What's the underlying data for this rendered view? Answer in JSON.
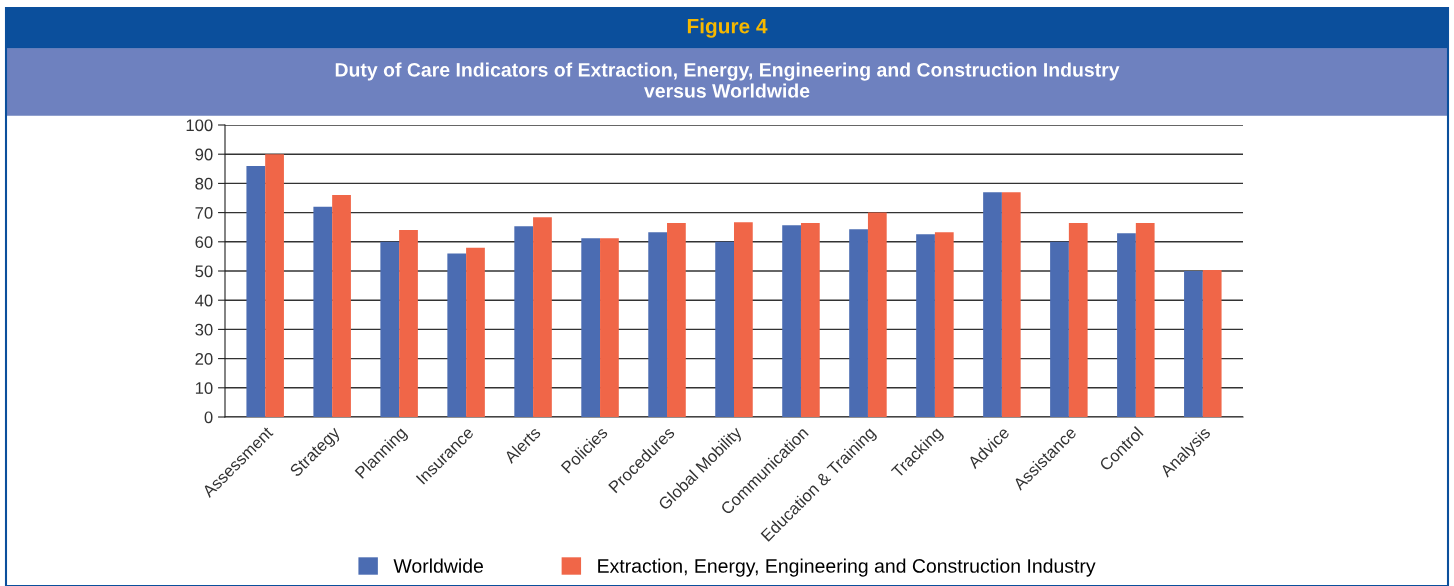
{
  "chart_data": {
    "type": "bar",
    "title": "Figure 4",
    "subtitle": "Duty of Care Indicators of Extraction, Energy, Engineering and Construction Industry\nversus Worldwide",
    "categories": [
      "Assessment",
      "Strategy",
      "Planning",
      "Insurance",
      "Alerts",
      "Policies",
      "Procedures",
      "Global Mobility",
      "Communication",
      "Education & Training",
      "Tracking",
      "Advice",
      "Assistance",
      "Control",
      "Analysis"
    ],
    "series": [
      {
        "name": "Worldwide",
        "color": "#4b6cb2",
        "values": [
          86,
          72,
          60,
          56,
          65.3,
          61.2,
          63.3,
          60,
          65.7,
          64.3,
          62.6,
          77,
          60,
          62.9,
          50
        ]
      },
      {
        "name": "Extraction, Energy, Engineering and Construction Industry",
        "color": "#f06648",
        "values": [
          90,
          76,
          64,
          58,
          68.4,
          61.2,
          66.4,
          66.7,
          66.4,
          70,
          63.3,
          77,
          66.4,
          66.4,
          50.3
        ]
      }
    ],
    "ylim": [
      0,
      100
    ],
    "yticks": [
      0,
      10,
      20,
      30,
      40,
      50,
      60,
      70,
      80,
      90,
      100
    ],
    "grid": "y",
    "legend": "bottom"
  }
}
